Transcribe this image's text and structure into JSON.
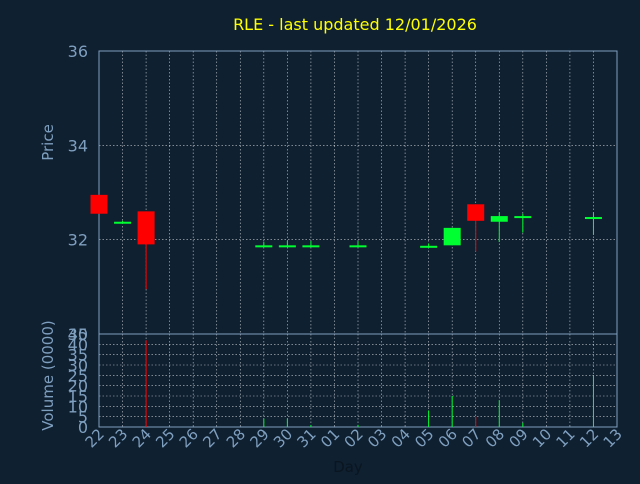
{
  "title": "RLE - last updated 12/01/2026",
  "colors": {
    "background": "#0f2031",
    "title": "#ffff00",
    "axis_text": "#7f9fbf",
    "frame": "#7f9fbf",
    "grid": "#ffffff",
    "up": "#00ff30",
    "down": "#ff0000",
    "dark_text": "#0a1520"
  },
  "chart_data": [
    {
      "type": "candlestick",
      "title": "RLE - last updated 12/01/2026",
      "ylabel": "Price",
      "ylim": [
        30,
        36
      ],
      "yticks": [
        30,
        32,
        34,
        36
      ],
      "grid": true,
      "x": [
        "22",
        "23",
        "24",
        "25",
        "26",
        "27",
        "28",
        "29",
        "30",
        "31",
        "01",
        "02",
        "03",
        "04",
        "05",
        "06",
        "07",
        "08",
        "09",
        "10",
        "11",
        "12",
        "13"
      ],
      "candles": [
        {
          "day": "22",
          "open": 32.95,
          "high": 32.95,
          "low": 32.55,
          "close": 32.55
        },
        {
          "day": "23",
          "open": 32.38,
          "high": 32.4,
          "low": 32.35,
          "close": 32.38
        },
        {
          "day": "24",
          "open": 32.6,
          "high": 32.6,
          "low": 30.95,
          "close": 31.9
        },
        {
          "day": "29",
          "open": 31.88,
          "high": 31.95,
          "low": 31.85,
          "close": 31.88
        },
        {
          "day": "30",
          "open": 31.88,
          "high": 31.97,
          "low": 31.85,
          "close": 31.88
        },
        {
          "day": "31",
          "open": 31.88,
          "high": 31.97,
          "low": 31.85,
          "close": 31.88
        },
        {
          "day": "02",
          "open": 31.88,
          "high": 31.97,
          "low": 31.85,
          "close": 31.88
        },
        {
          "day": "05",
          "open": 31.87,
          "high": 31.92,
          "low": 31.82,
          "close": 31.87
        },
        {
          "day": "06",
          "open": 31.88,
          "high": 32.25,
          "low": 31.88,
          "close": 32.25
        },
        {
          "day": "07",
          "open": 32.75,
          "high": 32.75,
          "low": 31.75,
          "close": 32.4
        },
        {
          "day": "08",
          "open": 32.38,
          "high": 32.58,
          "low": 31.95,
          "close": 32.5
        },
        {
          "day": "09",
          "open": 32.5,
          "high": 32.55,
          "low": 32.15,
          "close": 32.5
        },
        {
          "day": "12",
          "open": 32.48,
          "high": 32.58,
          "low": 32.1,
          "close": 32.48
        }
      ]
    },
    {
      "type": "bar",
      "ylabel": "Volume (0000)",
      "xlabel": "Day",
      "ylim": [
        0,
        45
      ],
      "yticks": [
        0,
        5,
        10,
        15,
        20,
        25,
        30,
        35,
        40,
        45
      ],
      "grid": true,
      "x": [
        "22",
        "23",
        "24",
        "25",
        "26",
        "27",
        "28",
        "29",
        "30",
        "31",
        "01",
        "02",
        "03",
        "04",
        "05",
        "06",
        "07",
        "08",
        "09",
        "10",
        "11",
        "12",
        "13"
      ],
      "bars": [
        {
          "day": "24",
          "value": 42,
          "direction": "down"
        },
        {
          "day": "29",
          "value": 4,
          "direction": "up"
        },
        {
          "day": "30",
          "value": 4,
          "direction": "up"
        },
        {
          "day": "31",
          "value": 1,
          "direction": "up"
        },
        {
          "day": "02",
          "value": 1,
          "direction": "up"
        },
        {
          "day": "05",
          "value": 8,
          "direction": "up"
        },
        {
          "day": "06",
          "value": 15,
          "direction": "up"
        },
        {
          "day": "07",
          "value": 5,
          "direction": "down"
        },
        {
          "day": "08",
          "value": 13,
          "direction": "up"
        },
        {
          "day": "09",
          "value": 2,
          "direction": "up"
        },
        {
          "day": "12",
          "value": 25,
          "direction": "up"
        }
      ]
    }
  ]
}
